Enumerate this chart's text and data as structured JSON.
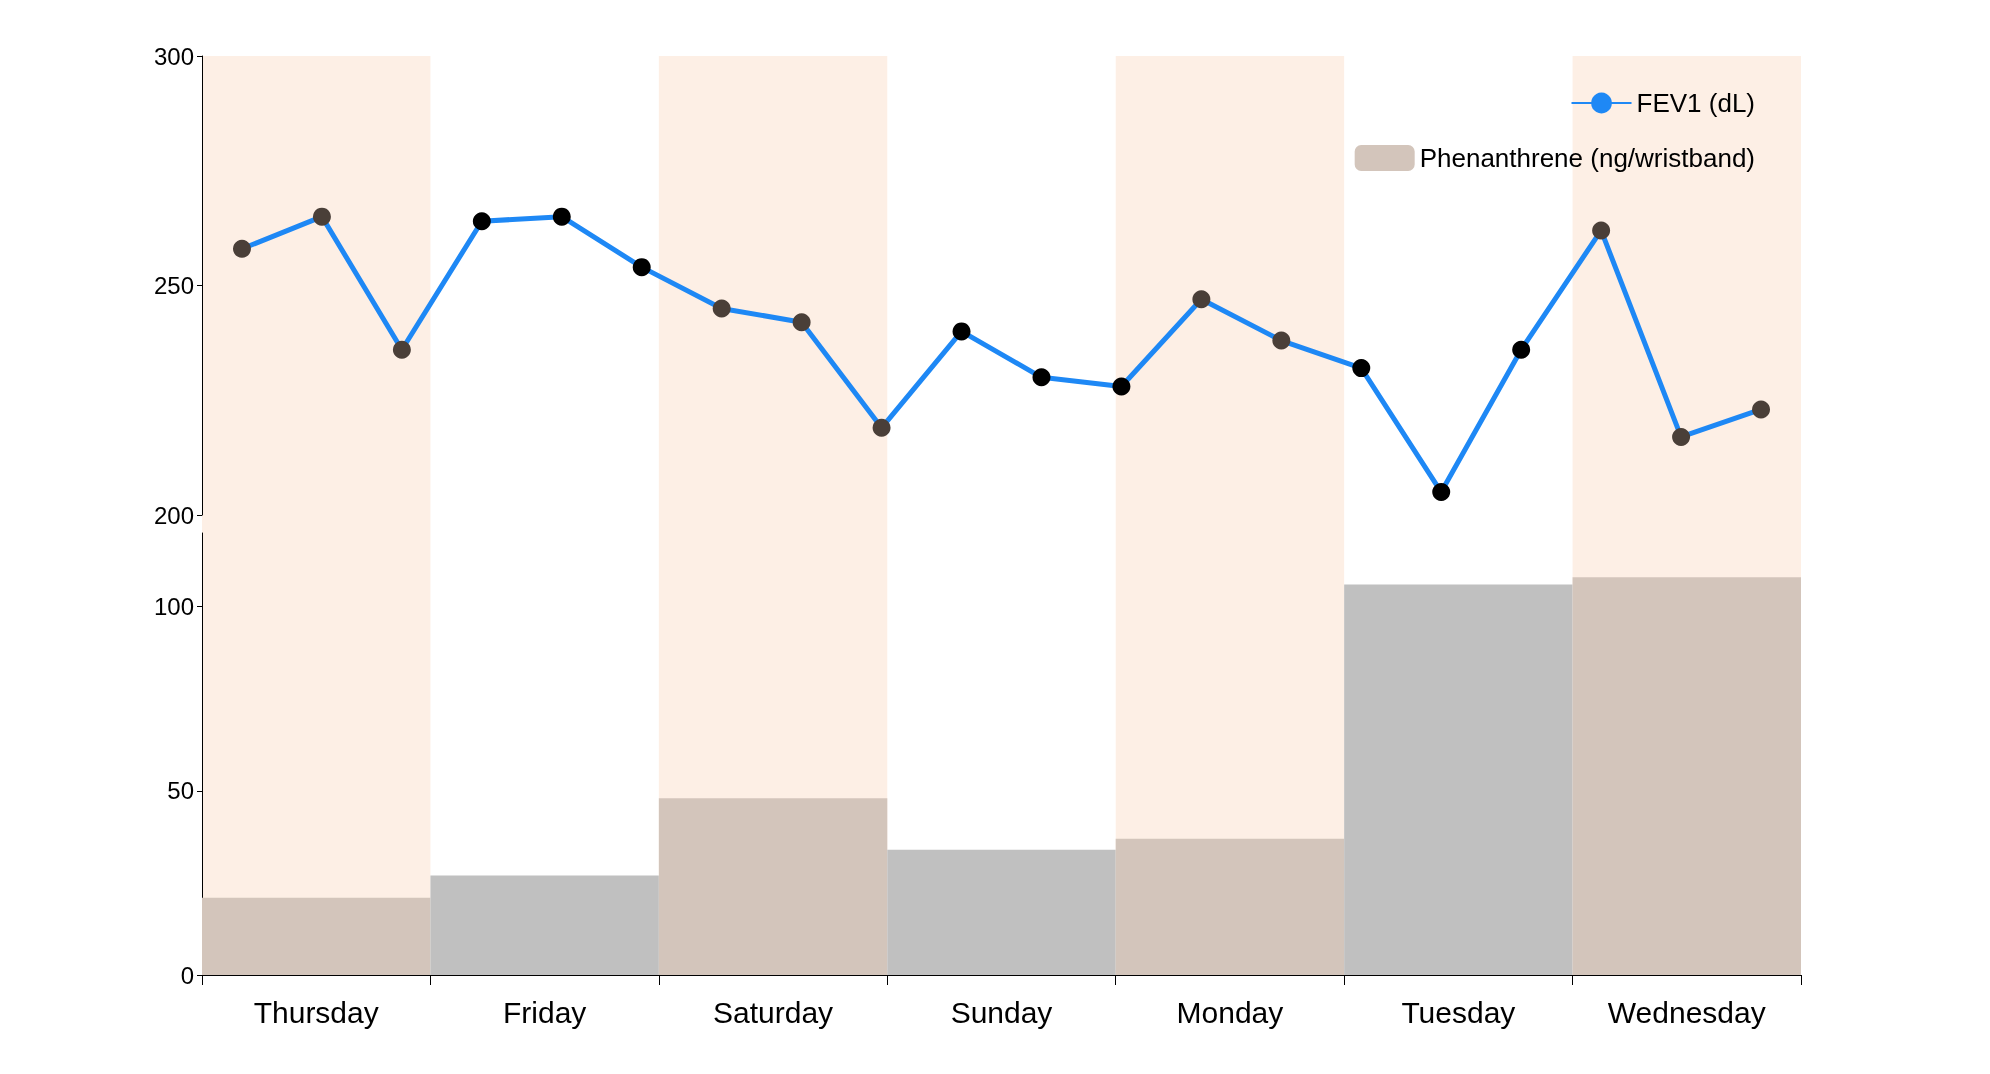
{
  "chart_data": [
    {
      "type": "line",
      "categories": [
        null,
        null,
        null,
        null,
        null,
        null,
        null,
        null,
        null,
        null,
        null,
        null,
        null,
        null,
        null,
        null,
        null,
        null,
        null,
        null
      ],
      "series": [
        {
          "name": "FEV1 (dL)",
          "color": "#1e88f5",
          "values": [
            258,
            265,
            236,
            264,
            265,
            254,
            245,
            242,
            219,
            240,
            230,
            228,
            247,
            238,
            232,
            205,
            236,
            262,
            217,
            223
          ],
          "colors": [
            "#4a3f38",
            "#4a3f38",
            "#4a3f38",
            "#000000",
            "#000000",
            "#000000",
            "#4a3f38",
            "#4a3f38",
            "#4a3f38",
            "#000000",
            "#000000",
            "#000000",
            "#4a3f38",
            "#4a3f38",
            "#000000",
            "#000000",
            "#000000",
            "#4a3f38",
            "#4a3f38",
            "#4a3f38"
          ]
        }
      ],
      "ylim": [
        200,
        300
      ],
      "yticks": [
        200,
        250,
        300
      ],
      "tick_labels": "y",
      "marker": "circle",
      "legend": "top right",
      "grid": false
    },
    {
      "type": "bar",
      "categories": [
        "Thursday",
        "Friday",
        "Saturday",
        "Sunday",
        "Monday",
        "Tuesday",
        "Wednesday"
      ],
      "series": [
        {
          "name": "Phenanthrene (ng/wristband)",
          "color": "#d3c5bb",
          "values": [
            21,
            27,
            48,
            34,
            37,
            106,
            108
          ],
          "colors": [
            "#d3c5bb",
            "#c0c0c0",
            "#d3c5bb",
            "#c0c0c0",
            "#d3c5bb",
            "#c0c0c0",
            "#d3c5bb"
          ]
        }
      ],
      "ylim": [
        0,
        120
      ],
      "yticks": [
        0,
        50,
        100
      ],
      "legend": "top right",
      "grid": false,
      "bands": [
        {
          "axis": "x",
          "from": "Thursday",
          "to": "Thursday",
          "color": "#fdefe5"
        },
        {
          "axis": "x",
          "from": "Saturday",
          "to": "Saturday",
          "color": "#fdefe5"
        },
        {
          "axis": "x",
          "from": "Monday",
          "to": "Monday",
          "color": "#fdefe5"
        },
        {
          "axis": "x",
          "from": "Wednesday",
          "to": "Wednesday",
          "color": "#fdefe5"
        }
      ]
    }
  ]
}
